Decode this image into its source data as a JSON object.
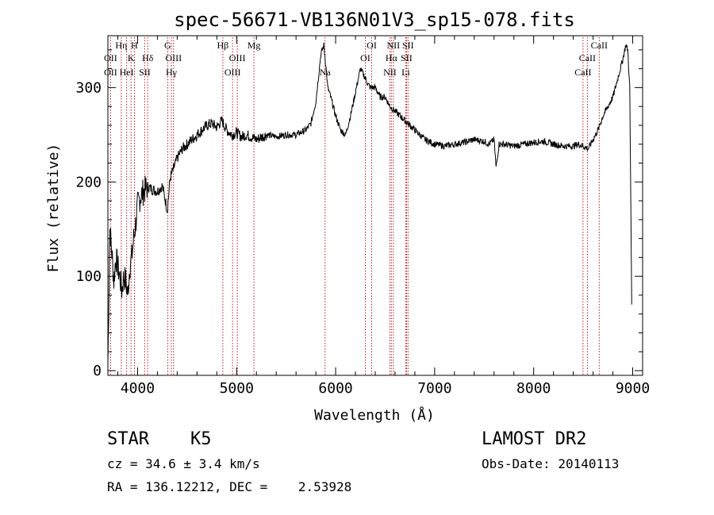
{
  "chart_data": {
    "type": "line",
    "title": "spec-56671-VB136N01V3_sp15-078.fits",
    "xlabel": "Wavelength (Å)",
    "ylabel": "Flux (relative)",
    "xlim": [
      3700,
      9100
    ],
    "ylim": [
      -5,
      355
    ],
    "xticks": [
      4000,
      5000,
      6000,
      7000,
      8000,
      9000
    ],
    "yticks": [
      0,
      100,
      200,
      300
    ],
    "series": [
      {
        "x": [
          3700,
          3720,
          3740,
          3760,
          3780,
          3800,
          3820,
          3840,
          3860,
          3880,
          3900,
          3920,
          3940,
          3960,
          3980,
          4000,
          4030,
          4060,
          4100,
          4150,
          4200,
          4250,
          4300,
          4330,
          4350,
          4400,
          4450,
          4500,
          4550,
          4600,
          4650,
          4700,
          4750,
          4800,
          4850,
          4900,
          4950,
          5000,
          5050,
          5100,
          5200,
          5300,
          5400,
          5500,
          5600,
          5700,
          5750,
          5800,
          5850,
          5880,
          5900,
          5920,
          5950,
          6000,
          6050,
          6100,
          6150,
          6200,
          6250,
          6300,
          6320,
          6350,
          6400,
          6450,
          6500,
          6550,
          6600,
          6650,
          6700,
          6750,
          6800,
          6850,
          6900,
          7000,
          7100,
          7200,
          7300,
          7400,
          7500,
          7550,
          7600,
          7620,
          7650,
          7700,
          7800,
          7900,
          8000,
          8100,
          8200,
          8300,
          8400,
          8450,
          8500,
          8550,
          8600,
          8650,
          8700,
          8750,
          8800,
          8850,
          8900,
          8930,
          8950,
          8970,
          8990
        ],
        "values": [
          5,
          150,
          125,
          95,
          120,
          110,
          100,
          85,
          100,
          95,
          80,
          110,
          120,
          140,
          155,
          175,
          185,
          190,
          195,
          192,
          190,
          196,
          170,
          205,
          210,
          225,
          235,
          240,
          245,
          250,
          255,
          260,
          262,
          258,
          265,
          255,
          250,
          252,
          248,
          250,
          245,
          250,
          248,
          250,
          250,
          255,
          262,
          285,
          335,
          345,
          325,
          300,
          290,
          270,
          255,
          250,
          270,
          295,
          320,
          310,
          305,
          300,
          300,
          290,
          290,
          280,
          275,
          270,
          265,
          260,
          255,
          250,
          245,
          240,
          238,
          240,
          242,
          245,
          243,
          240,
          245,
          215,
          240,
          240,
          238,
          240,
          242,
          243,
          240,
          238,
          238,
          240,
          238,
          235,
          245,
          255,
          270,
          280,
          290,
          310,
          330,
          345,
          340,
          300,
          70
        ]
      }
    ],
    "line_labels": [
      {
        "wl": 3727,
        "row": 2,
        "text": "OII"
      },
      {
        "wl": 3727,
        "row": 3,
        "text": "OII"
      },
      {
        "wl": 3835,
        "row": 1,
        "text": "Hη"
      },
      {
        "wl": 3889,
        "row": 3,
        "text": "HeI"
      },
      {
        "wl": 3934,
        "row": 2,
        "text": "K"
      },
      {
        "wl": 3968,
        "row": 1,
        "text": "H"
      },
      {
        "wl": 4072,
        "row": 3,
        "text": "SII"
      },
      {
        "wl": 4102,
        "row": 2,
        "text": "Hδ"
      },
      {
        "wl": 4304,
        "row": 1,
        "text": "G"
      },
      {
        "wl": 4341,
        "row": 3,
        "text": "Hγ"
      },
      {
        "wl": 4363,
        "row": 2,
        "text": "OIII"
      },
      {
        "wl": 4861,
        "row": 1,
        "text": "Hβ"
      },
      {
        "wl": 4959,
        "row": 3,
        "text": "OIII"
      },
      {
        "wl": 5007,
        "row": 2,
        "text": "OIII"
      },
      {
        "wl": 5175,
        "row": 1,
        "text": "Mg"
      },
      {
        "wl": 5893,
        "row": 3,
        "text": "Na"
      },
      {
        "wl": 6300,
        "row": 2,
        "text": "OI"
      },
      {
        "wl": 6364,
        "row": 1,
        "text": "OI"
      },
      {
        "wl": 6548,
        "row": 3,
        "text": "NII"
      },
      {
        "wl": 6563,
        "row": 2,
        "text": "Hα"
      },
      {
        "wl": 6583,
        "row": 1,
        "text": "NII"
      },
      {
        "wl": 6708,
        "row": 3,
        "text": "Li"
      },
      {
        "wl": 6716,
        "row": 2,
        "text": "SII"
      },
      {
        "wl": 6731,
        "row": 1,
        "text": "SII"
      },
      {
        "wl": 8498,
        "row": 3,
        "text": "CaII"
      },
      {
        "wl": 8542,
        "row": 2,
        "text": "CaII"
      },
      {
        "wl": 8662,
        "row": 1,
        "text": "CaII"
      }
    ]
  },
  "info": {
    "class": "STAR",
    "subclass": "K5",
    "survey": "LAMOST DR2",
    "cz": "cz = 34.6 ± 3.4 km/s",
    "obs_date": "Obs-Date: 20140113",
    "radec": "RA = 136.12212, DEC =    2.53928"
  }
}
